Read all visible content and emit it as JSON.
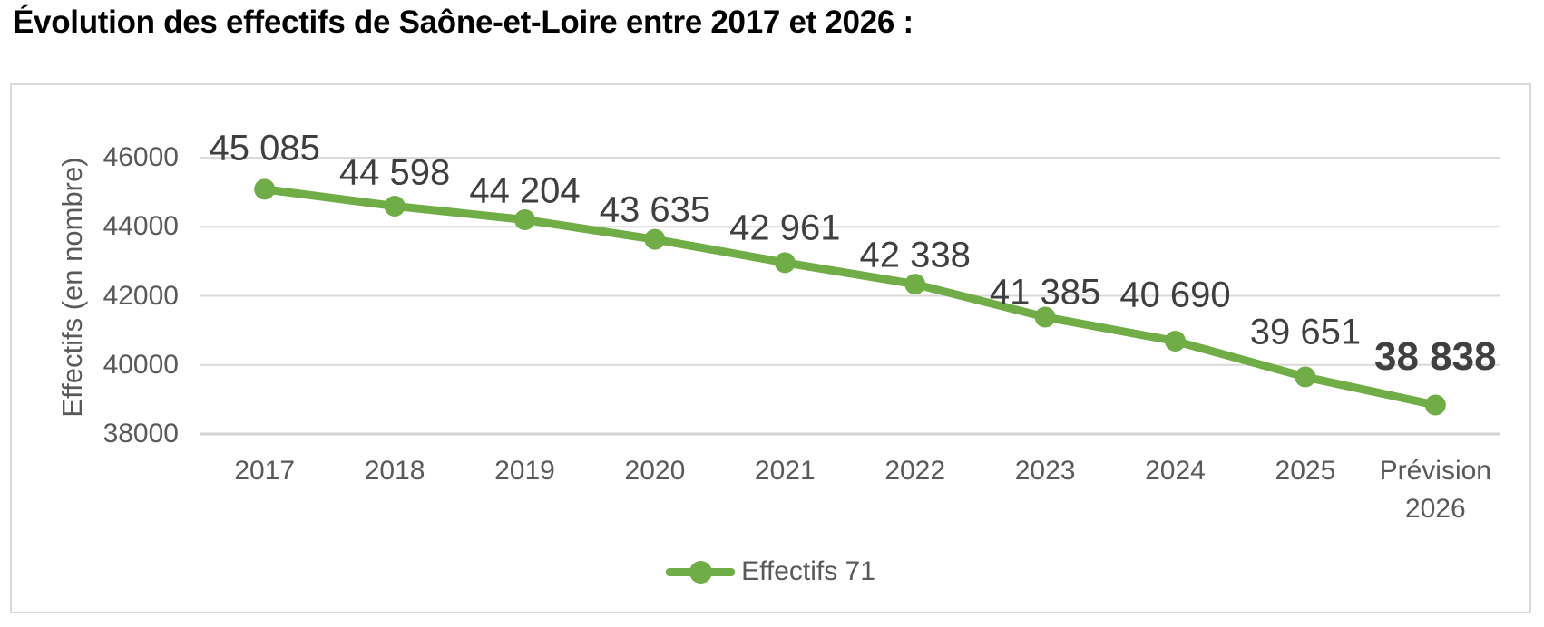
{
  "page": {
    "title": "Évolution des effectifs de Saône-et-Loire entre 2017 et 2026 :"
  },
  "chart_data": {
    "type": "line",
    "title": "",
    "categories": [
      "2017",
      "2018",
      "2019",
      "2020",
      "2021",
      "2022",
      "2023",
      "2024",
      "2025",
      "Prévision 2026"
    ],
    "series": [
      {
        "name": "Effectifs 71",
        "values": [
          45085,
          44598,
          44204,
          43635,
          42961,
          42338,
          41385,
          40690,
          39651,
          38838
        ],
        "color": "#70AD47"
      }
    ],
    "data_labels": [
      "45 085",
      "44 598",
      "44 204",
      "43 635",
      "42 961",
      "42 338",
      "41 385",
      "40 690",
      "39 651",
      "38 838"
    ],
    "final_label_bold": true,
    "xlabel": "",
    "ylabel": "Effectifs (en nombre)",
    "ylim": [
      38000,
      46000
    ],
    "yticks": [
      38000,
      40000,
      42000,
      44000,
      46000
    ],
    "grid": true,
    "legend_position": "bottom"
  },
  "colors": {
    "series_green": "#70AD47",
    "data_label_gray": "#3f3f3f",
    "axis_label_gray": "#595959",
    "gridline_gray": "#d9d9d9",
    "title_black": "#000000"
  }
}
